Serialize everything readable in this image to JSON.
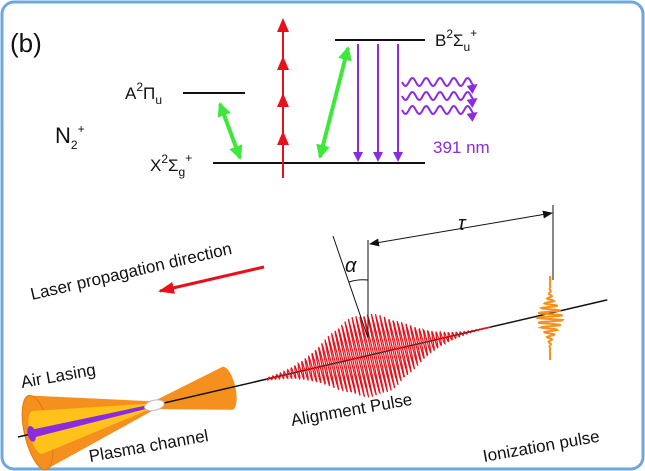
{
  "panel_label": "(b)",
  "molecule": {
    "symbol": "N",
    "subscript": "2",
    "charge": "+"
  },
  "levels": [
    {
      "letter": "A",
      "multiplicity": "2",
      "term": "Π",
      "symmetry": "u"
    },
    {
      "letter": "X",
      "multiplicity": "2",
      "term": "Σ",
      "symmetry": "g",
      "reflection": "+"
    },
    {
      "letter": "B",
      "multiplicity": "2",
      "term": "Σ",
      "symmetry": "u",
      "reflection": "+"
    }
  ],
  "emission_wavelength": "391 nm",
  "labels": {
    "laser_direction": "Laser propagation direction",
    "angle": "α",
    "delay": "τ",
    "air_lasing": "Air Lasing",
    "plasma_channel": "Plasma channel",
    "alignment_pulse": "Alignment Pulse",
    "ionization_pulse": "Ionization pulse"
  }
}
